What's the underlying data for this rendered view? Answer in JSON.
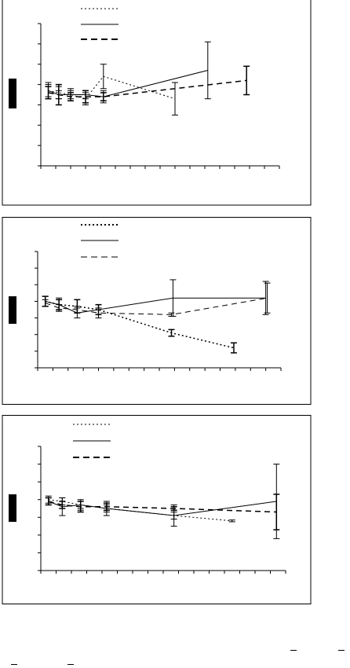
{
  "chart_data": [
    {
      "type": "line",
      "title": "",
      "xlabel": "",
      "ylabel": "",
      "xlim": [
        0,
        16
      ],
      "ylim": [
        0,
        7
      ],
      "series": [
        {
          "style": "dotted",
          "points": [
            {
              "x": 0.5,
              "y": 3.7,
              "err": 0.4
            },
            {
              "x": 1.2,
              "y": 3.6,
              "err": 0.3
            },
            {
              "x": 2.0,
              "y": 3.5,
              "err": 0.3
            },
            {
              "x": 3.0,
              "y": 3.3,
              "err": 0.3
            },
            {
              "x": 4.2,
              "y": 4.4,
              "err": 0.6
            },
            {
              "x": 9.0,
              "y": 3.3,
              "err": 0.8
            }
          ]
        },
        {
          "style": "solid",
          "points": [
            {
              "x": 0.5,
              "y": 3.7,
              "err": 0.3
            },
            {
              "x": 1.2,
              "y": 3.5,
              "err": 0.2
            },
            {
              "x": 2.0,
              "y": 3.5,
              "err": 0.2
            },
            {
              "x": 3.0,
              "y": 3.5,
              "err": 0.2
            },
            {
              "x": 4.2,
              "y": 3.4,
              "err": 0.3
            },
            {
              "x": 11.2,
              "y": 4.7,
              "err": 1.4
            }
          ]
        },
        {
          "style": "dashed",
          "points": [
            {
              "x": 0.5,
              "y": 3.6,
              "err": 0.3
            },
            {
              "x": 1.2,
              "y": 3.5,
              "err": 0.5
            },
            {
              "x": 2.0,
              "y": 3.4,
              "err": 0.2
            },
            {
              "x": 3.0,
              "y": 3.4,
              "err": 0.3
            },
            {
              "x": 4.2,
              "y": 3.4,
              "err": 0.2
            },
            {
              "x": 13.8,
              "y": 4.2,
              "err": 0.7
            }
          ]
        }
      ]
    },
    {
      "type": "line",
      "title": "",
      "xlabel": "",
      "ylabel": "",
      "xlim": [
        0,
        16
      ],
      "ylim": [
        0,
        7
      ],
      "series": [
        {
          "style": "dotted",
          "points": [
            {
              "x": 0.5,
              "y": 4.0,
              "err": 0.3
            },
            {
              "x": 1.4,
              "y": 3.8,
              "err": 0.3
            },
            {
              "x": 2.6,
              "y": 3.7,
              "err": 0.4
            },
            {
              "x": 4.0,
              "y": 3.5,
              "err": 0.3
            },
            {
              "x": 8.8,
              "y": 2.1,
              "err": 0.2
            },
            {
              "x": 12.9,
              "y": 1.2,
              "err": 0.3
            }
          ]
        },
        {
          "style": "solid",
          "points": [
            {
              "x": 0.5,
              "y": 4.0,
              "err": 0.3
            },
            {
              "x": 1.4,
              "y": 3.8,
              "err": 0.4
            },
            {
              "x": 2.6,
              "y": 3.3,
              "err": 0.3
            },
            {
              "x": 4.0,
              "y": 3.5,
              "err": 0.3
            },
            {
              "x": 8.9,
              "y": 4.2,
              "err": 1.1
            },
            {
              "x": 15.0,
              "y": 4.2,
              "err": 1.0
            }
          ]
        },
        {
          "style": "dashed",
          "points": [
            {
              "x": 0.5,
              "y": 3.9,
              "err": 0.2
            },
            {
              "x": 1.4,
              "y": 3.6,
              "err": 0.2
            },
            {
              "x": 2.6,
              "y": 3.5,
              "err": 0.2
            },
            {
              "x": 4.0,
              "y": 3.3,
              "err": 0.3
            },
            {
              "x": 8.8,
              "y": 3.2,
              "err": 0.1
            },
            {
              "x": 15.1,
              "y": 4.2,
              "err": 0.9
            }
          ]
        }
      ]
    },
    {
      "type": "line",
      "title": "",
      "xlabel": "",
      "ylabel": "",
      "xlim": [
        0,
        16
      ],
      "ylim": [
        0,
        7
      ],
      "series": [
        {
          "style": "dotted",
          "points": [
            {
              "x": 0.5,
              "y": 4.0,
              "err": 0.2
            },
            {
              "x": 1.4,
              "y": 3.9,
              "err": 0.2
            },
            {
              "x": 2.6,
              "y": 3.7,
              "err": 0.2
            },
            {
              "x": 4.3,
              "y": 3.5,
              "err": 0.2
            },
            {
              "x": 8.7,
              "y": 3.1,
              "err": 0.2
            },
            {
              "x": 12.5,
              "y": 2.8,
              "err": 0.05
            }
          ]
        },
        {
          "style": "solid",
          "points": [
            {
              "x": 0.5,
              "y": 3.9,
              "err": 0.2
            },
            {
              "x": 1.4,
              "y": 3.6,
              "err": 0.5
            },
            {
              "x": 2.6,
              "y": 3.7,
              "err": 0.3
            },
            {
              "x": 4.3,
              "y": 3.5,
              "err": 0.4
            },
            {
              "x": 8.7,
              "y": 3.1,
              "err": 0.6
            },
            {
              "x": 15.4,
              "y": 3.9,
              "err": 2.1
            }
          ]
        },
        {
          "style": "dashed",
          "points": [
            {
              "x": 0.5,
              "y": 3.9,
              "err": 0.2
            },
            {
              "x": 1.4,
              "y": 3.7,
              "err": 0.2
            },
            {
              "x": 2.6,
              "y": 3.6,
              "err": 0.3
            },
            {
              "x": 4.3,
              "y": 3.6,
              "err": 0.2
            },
            {
              "x": 8.7,
              "y": 3.5,
              "err": 0.1
            },
            {
              "x": 15.4,
              "y": 3.3,
              "err": 1.0
            }
          ]
        }
      ]
    }
  ]
}
